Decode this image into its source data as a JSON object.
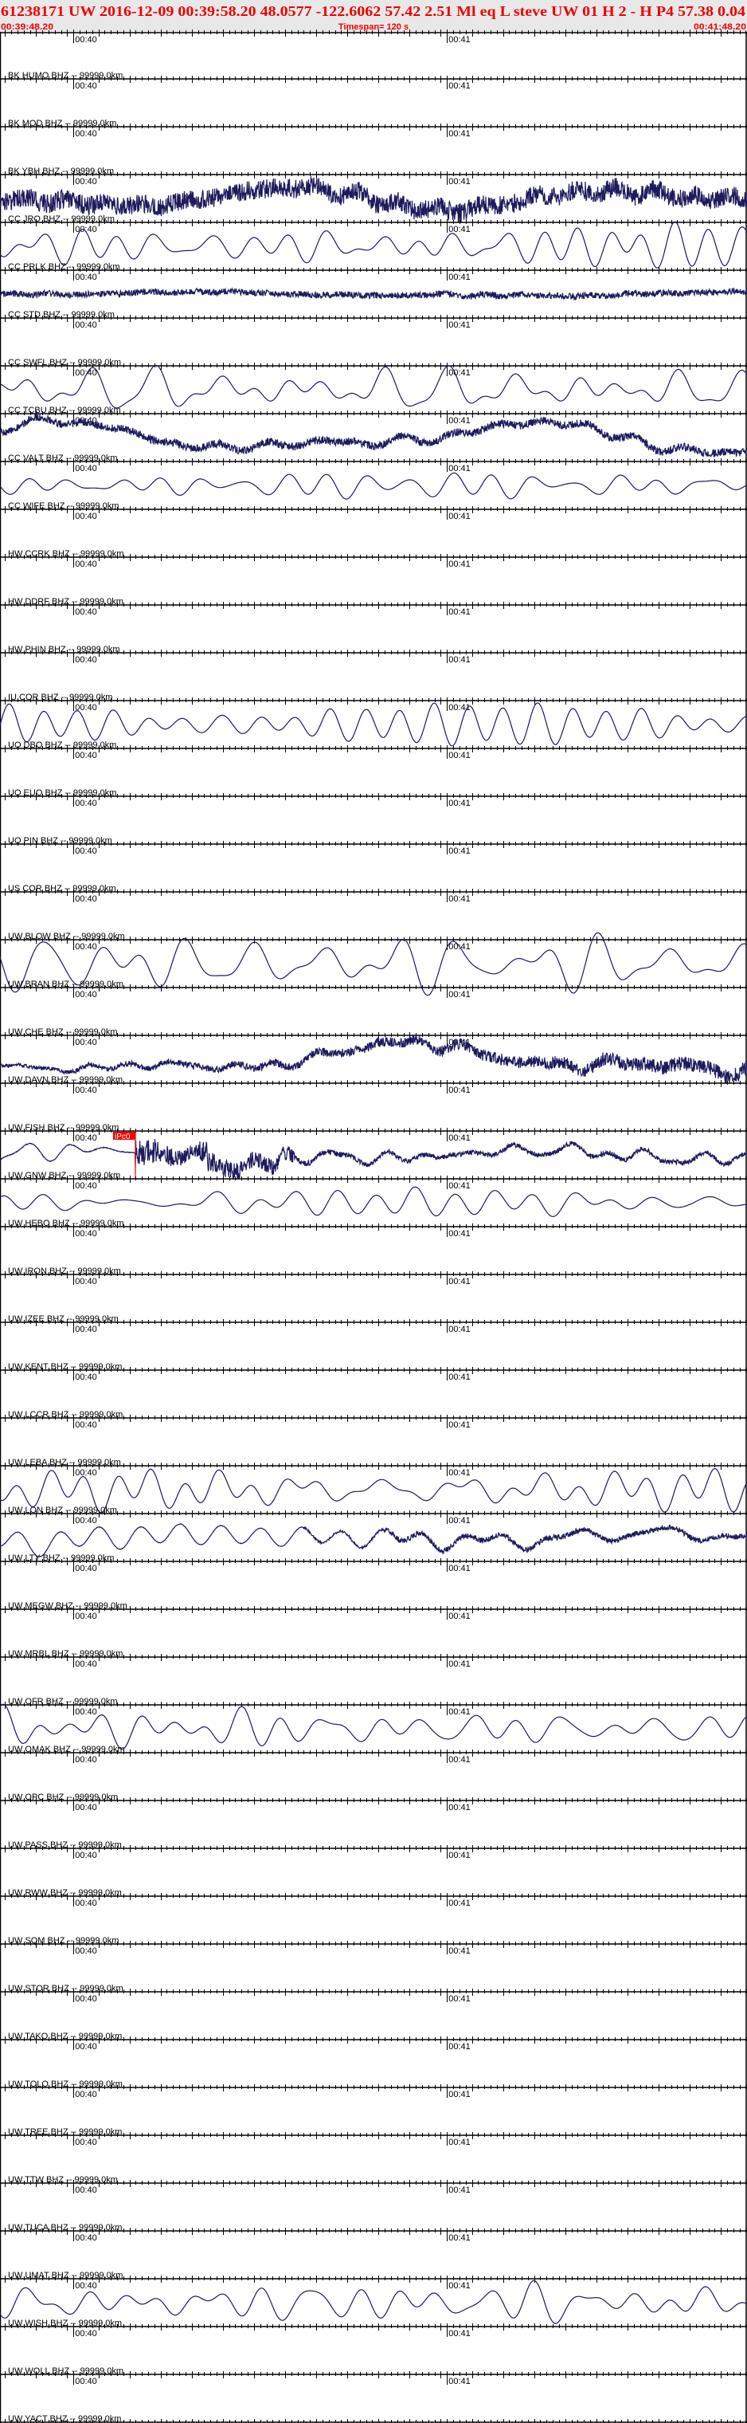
{
  "header": {
    "title": "61238171 UW 2016-12-09 00:39:58.20   48.0577 -122.6062  57.42  2.51 Ml  eq  L steve    UW 01  H   2  -  H P4   57.38  0.04",
    "start_time": "00:39:48.20",
    "timespan": "Timespan= 120 s",
    "end_time": "00:41:48.20"
  },
  "axis": {
    "start_seconds": 0,
    "span_seconds": 120,
    "minute_ticks": [
      {
        "label": "00:40",
        "t": 11.8
      },
      {
        "label": "00:41",
        "t": 71.8
      }
    ]
  },
  "colors": {
    "title": "#f00000",
    "trace": "#1e1a5e",
    "pick": "#ff0000",
    "header_bg": "#e8e8e8"
  },
  "stations": [
    {
      "label": "BK HUMO BHZ -- 99999.0km",
      "trace": null
    },
    {
      "label": "BK MOD BHZ -- 99999.0km",
      "trace": null
    },
    {
      "label": "BK YBH BHZ -- 99999.0km",
      "trace": "noisy"
    },
    {
      "label": "CC JRO BHZ -- 99999.0km",
      "trace": "smooth"
    },
    {
      "label": "CC PRLK BHZ -- 99999.0km",
      "trace": "noisy-thin"
    },
    {
      "label": "CC STD BHZ -- 99999.0km",
      "trace": null
    },
    {
      "label": "CC SWFL BHZ -- 99999.0km",
      "trace": "smooth"
    },
    {
      "label": "CC TCBU BHZ -- 99999.0km",
      "trace": "noisy-wander"
    },
    {
      "label": "CC VALT BHZ -- 99999.0km",
      "trace": "smooth"
    },
    {
      "label": "CC WIFE BHZ -- 99999.0km",
      "trace": null
    },
    {
      "label": "HW CCRK BHZ -- 99999.0km",
      "trace": null
    },
    {
      "label": "HW DDRF BHZ -- 99999.0km",
      "trace": null
    },
    {
      "label": "HW PHIN BHZ -- 99999.0km",
      "trace": null
    },
    {
      "label": "IU COR BHZ -- 99999.0km",
      "trace": "smooth"
    },
    {
      "label": "UO DBO BHZ -- 99999.0km",
      "trace": null
    },
    {
      "label": "UO EUO BHZ -- 99999.0km",
      "trace": null
    },
    {
      "label": "UO PIN BHZ -- 99999.0km",
      "trace": null
    },
    {
      "label": "US COR BHZ -- 99999.0km",
      "trace": null
    },
    {
      "label": "UW BLOW BHZ -- 99999.0km",
      "trace": "smooth"
    },
    {
      "label": "UW BRAN BHZ -- 99999.0km",
      "trace": null
    },
    {
      "label": "UW CHE BHZ -- 99999.0km",
      "trace": "noisy-wander"
    },
    {
      "label": "UW DAVN BHZ -- 99999.0km",
      "trace": null
    },
    {
      "label": "UW FISH BHZ -- 99999.0km",
      "trace": "onset",
      "pick": {
        "label": "iPc0",
        "t": 21.7
      }
    },
    {
      "label": "UW GNW BHZ -- 99999.0km",
      "trace": "smooth"
    },
    {
      "label": "UW HEBO BHZ -- 99999.0km",
      "trace": null
    },
    {
      "label": "UW IRON BHZ -- 99999.0km",
      "trace": null
    },
    {
      "label": "UW IZEE BHZ -- 99999.0km",
      "trace": null
    },
    {
      "label": "UW KENT BHZ -- 99999.0km",
      "trace": null
    },
    {
      "label": "UW LCCR BHZ -- 99999.0km",
      "trace": null
    },
    {
      "label": "UW LEBA BHZ -- 99999.0km",
      "trace": "smooth"
    },
    {
      "label": "UW LON BHZ -- 99999.0km",
      "trace": "smooth-thickening"
    },
    {
      "label": "UW LTY BHZ -- 99999.0km",
      "trace": null
    },
    {
      "label": "UW MEGW BHZ -- 99999.0km",
      "trace": null
    },
    {
      "label": "UW MRBL BHZ -- 99999.0km",
      "trace": null
    },
    {
      "label": "UW OFR BHZ -- 99999.0km",
      "trace": "smooth"
    },
    {
      "label": "UW OMAK BHZ -- 99999.0km",
      "trace": null
    },
    {
      "label": "UW OPC BHZ -- 99999.0km",
      "trace": null
    },
    {
      "label": "UW PASS BHZ -- 99999.0km",
      "trace": null
    },
    {
      "label": "UW RWW BHZ -- 99999.0km",
      "trace": null
    },
    {
      "label": "UW SQM BHZ -- 99999.0km",
      "trace": null
    },
    {
      "label": "UW STOR BHZ -- 99999.0km",
      "trace": null
    },
    {
      "label": "UW TAKO BHZ -- 99999.0km",
      "trace": null
    },
    {
      "label": "UW TOLO BHZ -- 99999.0km",
      "trace": null
    },
    {
      "label": "UW TREE BHZ -- 99999.0km",
      "trace": null
    },
    {
      "label": "UW TTW BHZ -- 99999.0km",
      "trace": null
    },
    {
      "label": "UW TUCA BHZ -- 99999.0km",
      "trace": null
    },
    {
      "label": "UW UMAT BHZ -- 99999.0km",
      "trace": "smooth"
    },
    {
      "label": "UW WISH BHZ -- 99999.0km",
      "trace": null
    },
    {
      "label": "UW WOLL BHZ -- 99999.0km",
      "trace": null
    },
    {
      "label": "UW YACT BHZ -- 99999.0km",
      "trace": null
    }
  ]
}
